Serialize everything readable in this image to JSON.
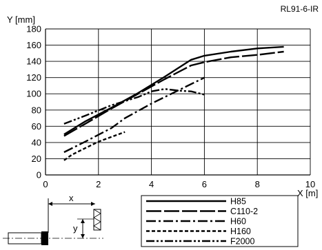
{
  "figure_code": "RL91-6-IR",
  "chart_data": {
    "type": "line",
    "title": "",
    "ylabel": "Y [mm]",
    "xlabel": "X [m]",
    "xlim": [
      0,
      10
    ],
    "ylim": [
      0,
      180
    ],
    "x_ticks": [
      "0",
      "2",
      "4",
      "6",
      "8",
      "10"
    ],
    "y_ticks": [
      "0",
      "20",
      "40",
      "60",
      "80",
      "100",
      "120",
      "140",
      "160",
      "180"
    ],
    "grid": true,
    "legend_position": "bottom-right, below plot",
    "series": [
      {
        "name": "H85",
        "dash": "solid",
        "x": [
          0.7,
          1.5,
          2.5,
          3.5,
          4.5,
          5.5,
          6.0,
          7.0,
          8.0,
          9.0
        ],
        "y": [
          50,
          66,
          83,
          101,
          121,
          142,
          147,
          152,
          156,
          158
        ]
      },
      {
        "name": "C110-2",
        "dash": "long",
        "x": [
          0.7,
          1.5,
          2.5,
          3.5,
          4.5,
          5.5,
          6.0,
          7.0,
          8.0,
          9.0
        ],
        "y": [
          48,
          63,
          82,
          100,
          118,
          135,
          139,
          145,
          148,
          152
        ]
      },
      {
        "name": "H60",
        "dash": "dashdot",
        "x": [
          0.7,
          1.5,
          2.5,
          3.0,
          4.0,
          5.0,
          6.0
        ],
        "y": [
          28,
          41,
          58,
          70,
          88,
          104,
          120
        ]
      },
      {
        "name": "H160",
        "dash": "short",
        "x": [
          0.7,
          1.0,
          1.5,
          2.0,
          2.5,
          3.0
        ],
        "y": [
          18,
          25,
          33,
          41,
          47,
          53
        ]
      },
      {
        "name": "F2000",
        "dash": "dashdotdot",
        "x": [
          0.7,
          1.5,
          2.5,
          3.5,
          4.0,
          4.5,
          5.0,
          5.5,
          6.0
        ],
        "y": [
          63,
          73,
          86,
          96,
          103,
          106,
          104,
          103,
          99
        ]
      }
    ]
  },
  "diagram": {
    "x_label": "x",
    "y_label": "y"
  }
}
